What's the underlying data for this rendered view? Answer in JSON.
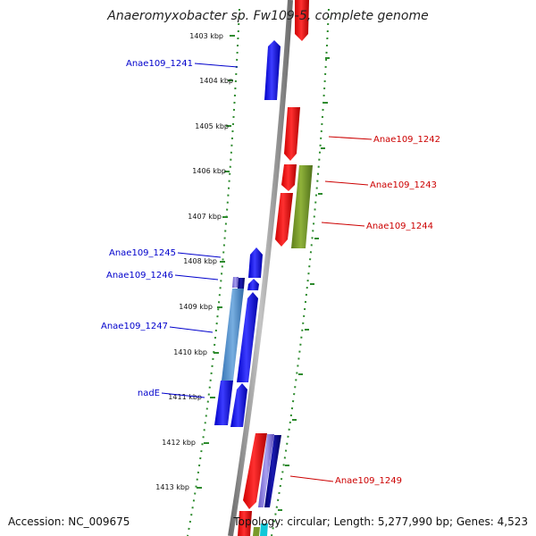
{
  "title": "Anaeromyxobacter sp. Fw109-5, complete genome",
  "accession": "Accession: NC_009675",
  "topology": "Topology: circular; Length: 5,277,990 bp; Genes: 4,523",
  "colors": {
    "reverse_strand": "#0000ff",
    "forward_strand": "#ff0000",
    "backbone": "#909090",
    "ruler_tick": "#2e8b2e",
    "reverse_label": "#0000cc",
    "forward_label": "#cc0000"
  },
  "ruler": [
    "1403 kbp",
    "1404 kbp",
    "1405 kbp",
    "1406 kbp",
    "1407 kbp",
    "1408 kbp",
    "1409 kbp",
    "1410 kbp",
    "1411 kbp",
    "1412 kbp",
    "1413 kbp"
  ],
  "genes": [
    {
      "name": "Anae109_1241",
      "strand": "reverse"
    },
    {
      "name": "Anae109_1242",
      "strand": "forward"
    },
    {
      "name": "Anae109_1243",
      "strand": "forward"
    },
    {
      "name": "Anae109_1244",
      "strand": "forward"
    },
    {
      "name": "Anae109_1245",
      "strand": "reverse"
    },
    {
      "name": "Anae109_1246",
      "strand": "reverse"
    },
    {
      "name": "Anae109_1247",
      "strand": "reverse"
    },
    {
      "name": "nadE",
      "strand": "reverse"
    },
    {
      "name": "Anae109_1249",
      "strand": "forward"
    }
  ]
}
